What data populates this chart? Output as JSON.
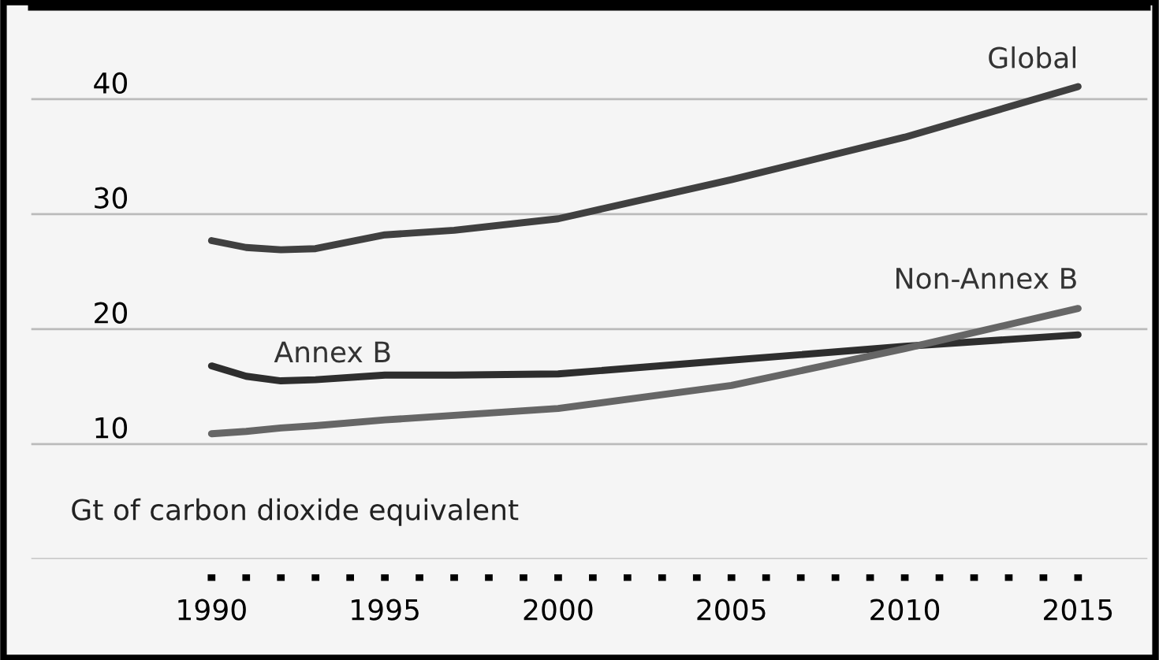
{
  "chart_data": {
    "type": "line",
    "ylabel": "Gt of carbon dioxide equivalent",
    "x": [
      1990,
      1991,
      1992,
      1993,
      1995,
      1997,
      2000,
      2005,
      2010,
      2015
    ],
    "series": [
      {
        "name": "Global",
        "color": "#404040",
        "values": [
          27.7,
          27.1,
          26.9,
          27.0,
          28.2,
          28.6,
          29.6,
          33.0,
          36.7,
          41.1
        ]
      },
      {
        "name": "Annex B",
        "color": "#2e2e2e",
        "values": [
          16.8,
          15.9,
          15.5,
          15.6,
          16.0,
          16.0,
          16.1,
          17.3,
          18.5,
          19.5
        ]
      },
      {
        "name": "Non-Annex B",
        "color": "#666666",
        "values": [
          10.9,
          11.1,
          11.4,
          11.6,
          12.1,
          12.5,
          13.1,
          15.1,
          18.3,
          21.8
        ]
      }
    ],
    "xlim": [
      1984.8,
      2017.0
    ],
    "ylim": [
      0,
      48
    ],
    "xticks": [
      1990,
      {
        "value": 1991,
        "label": null
      },
      {
        "value": 1992,
        "label": null
      },
      {
        "value": 1993,
        "label": null
      },
      {
        "value": 1994,
        "label": null
      },
      1995,
      {
        "value": 1996,
        "label": null
      },
      {
        "value": 1997,
        "label": null
      },
      {
        "value": 1998,
        "label": null
      },
      {
        "value": 1999,
        "label": null
      },
      2000,
      {
        "value": 2001,
        "label": null
      },
      {
        "value": 2002,
        "label": null
      },
      {
        "value": 2003,
        "label": null
      },
      {
        "value": 2004,
        "label": null
      },
      2005,
      {
        "value": 2006,
        "label": null
      },
      {
        "value": 2007,
        "label": null
      },
      {
        "value": 2008,
        "label": null
      },
      {
        "value": 2009,
        "label": null
      },
      2010,
      {
        "value": 2011,
        "label": null
      },
      {
        "value": 2012,
        "label": null
      },
      {
        "value": 2013,
        "label": null
      },
      {
        "value": 2014,
        "label": null
      },
      2015
    ],
    "yticks": [
      {
        "value": 0,
        "label": null
      },
      10,
      20,
      30,
      40
    ],
    "grid": "y",
    "legend": false,
    "marker": "none",
    "line_style": "solid"
  }
}
